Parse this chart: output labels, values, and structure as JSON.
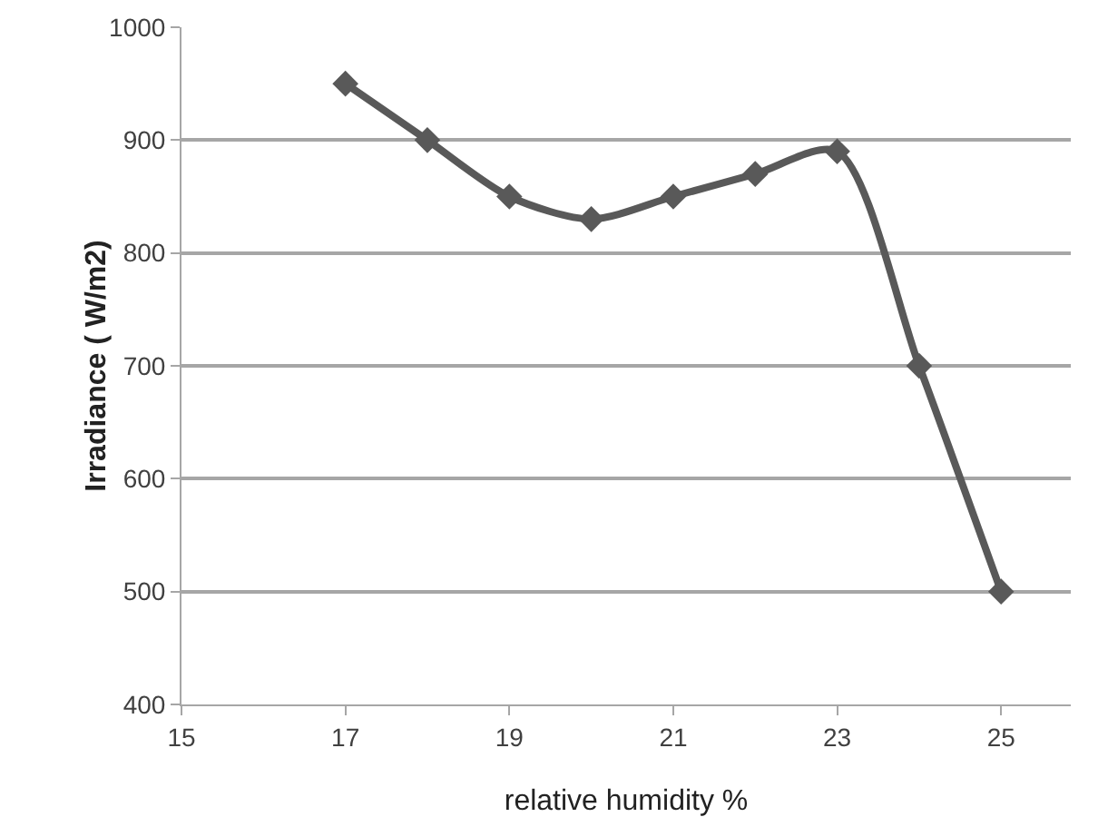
{
  "chart_data": {
    "type": "line",
    "xlabel": "relative humidity %",
    "ylabel": "Irradiance ( W/m2)",
    "x": [
      17,
      18,
      19,
      20,
      21,
      22,
      23,
      24,
      25
    ],
    "series": [
      {
        "color": "#595959",
        "values": [
          950,
          900,
          850,
          830,
          850,
          870,
          890,
          700,
          500
        ]
      }
    ],
    "xlim": [
      15,
      25.85
    ],
    "xticks": [
      15,
      17,
      19,
      21,
      23,
      25
    ],
    "ylim": [
      400,
      1000
    ],
    "yticks": [
      400,
      500,
      600,
      700,
      800,
      900,
      1000
    ],
    "grid": "y",
    "marker": "diamond",
    "line_style": "solid"
  }
}
